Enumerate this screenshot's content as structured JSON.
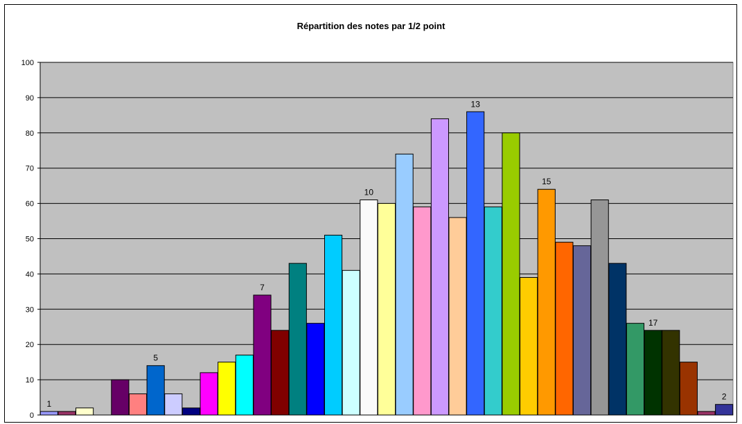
{
  "chart_data": {
    "type": "bar",
    "title": "Répartition des notes par 1/2 point",
    "xlabel": "",
    "ylabel": "",
    "ylim": [
      0,
      100
    ],
    "yticks": [
      0,
      10,
      20,
      30,
      40,
      50,
      60,
      70,
      80,
      90,
      100
    ],
    "grid": true,
    "legend": "none",
    "plot_background": "#c0c0c0",
    "values": [
      1,
      1,
      2,
      0,
      10,
      6,
      14,
      6,
      2,
      12,
      15,
      17,
      34,
      24,
      43,
      26,
      51,
      41,
      61,
      60,
      74,
      59,
      84,
      56,
      86,
      59,
      80,
      39,
      64,
      49,
      48,
      61,
      43,
      26,
      24,
      24,
      15,
      1,
      3
    ],
    "colors": [
      "#9999ff",
      "#993366",
      "#ffffcc",
      "#ccffff",
      "#660066",
      "#ff8080",
      "#0066cc",
      "#ccccff",
      "#000080",
      "#ff00ff",
      "#ffff00",
      "#00ffff",
      "#800080",
      "#800000",
      "#008080",
      "#0000ff",
      "#00ccff",
      "#ccffff",
      "#fafafa",
      "#ffff99",
      "#99ccff",
      "#ff99cc",
      "#cc99ff",
      "#ffcc99",
      "#3366ff",
      "#33cccc",
      "#99cc00",
      "#ffcc00",
      "#ff9900",
      "#ff6600",
      "#666699",
      "#969696",
      "#003366",
      "#339966",
      "#003300",
      "#333300",
      "#993300",
      "#993366",
      "#333399"
    ],
    "data_labels": [
      {
        "index": 0,
        "text": "1"
      },
      {
        "index": 6,
        "text": "5"
      },
      {
        "index": 12,
        "text": "7"
      },
      {
        "index": 18,
        "text": "10"
      },
      {
        "index": 24,
        "text": "13"
      },
      {
        "index": 28,
        "text": "15"
      },
      {
        "index": 34,
        "text": "17"
      },
      {
        "index": 38,
        "text": "2"
      }
    ]
  }
}
